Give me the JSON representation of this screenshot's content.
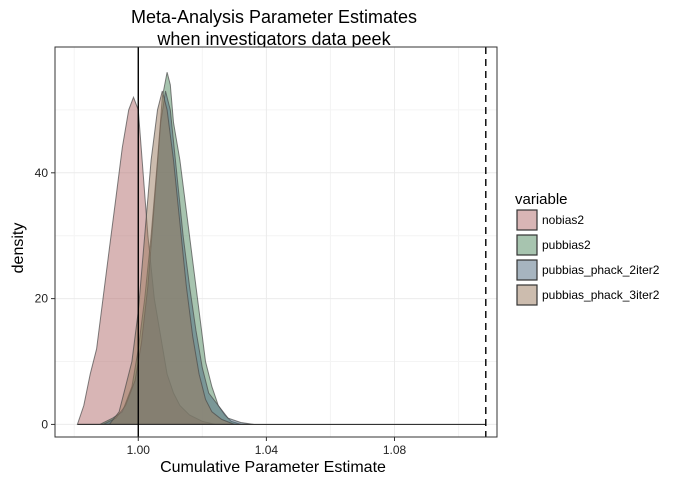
{
  "chart_data": {
    "type": "area",
    "title_line1": "Meta-Analysis Parameter Estimates",
    "title_line2": "when investigators data peek",
    "xlabel": "Cumulative Parameter Estimate",
    "ylabel": "density",
    "xlim": [
      0.974,
      1.112
    ],
    "ylim": [
      -2,
      60
    ],
    "x_ticks": [
      1.0,
      1.04,
      1.08
    ],
    "x_tick_labels": [
      "1.00",
      "1.04",
      "1.08"
    ],
    "y_ticks": [
      0,
      20,
      40
    ],
    "y_tick_labels": [
      "0",
      "20",
      "40"
    ],
    "grid": true,
    "vlines": [
      {
        "x": 1.0,
        "style": "solid"
      },
      {
        "x": 1.1085,
        "style": "dashed"
      }
    ],
    "legend_title": "variable",
    "legend_position": "right",
    "series": [
      {
        "name": "nobias2",
        "color": "#b26b6b",
        "points": [
          [
            0.981,
            0
          ],
          [
            0.982,
            1.5
          ],
          [
            0.983,
            3
          ],
          [
            0.985,
            8
          ],
          [
            0.987,
            12
          ],
          [
            0.989,
            20
          ],
          [
            0.991,
            28
          ],
          [
            0.993,
            36
          ],
          [
            0.995,
            44
          ],
          [
            0.997,
            50
          ],
          [
            0.9985,
            52
          ],
          [
            1.0,
            50
          ],
          [
            1.0015,
            40
          ],
          [
            1.003,
            30
          ],
          [
            1.005,
            20
          ],
          [
            1.007,
            14
          ],
          [
            1.009,
            8
          ],
          [
            1.011,
            5
          ],
          [
            1.013,
            3
          ],
          [
            1.016,
            1.5
          ],
          [
            1.02,
            0.5
          ],
          [
            1.024,
            0
          ]
        ]
      },
      {
        "name": "pubbias2",
        "color": "#4f8a60",
        "points": [
          [
            0.988,
            0
          ],
          [
            0.992,
            1
          ],
          [
            0.995,
            2
          ],
          [
            0.998,
            6
          ],
          [
            1.0,
            12
          ],
          [
            1.002,
            20
          ],
          [
            1.004,
            30
          ],
          [
            1.006,
            42
          ],
          [
            1.0075,
            52
          ],
          [
            1.009,
            56
          ],
          [
            1.01,
            54
          ],
          [
            1.011,
            48
          ],
          [
            1.013,
            42
          ],
          [
            1.015,
            34
          ],
          [
            1.017,
            26
          ],
          [
            1.019,
            18
          ],
          [
            1.021,
            10
          ],
          [
            1.023,
            6
          ],
          [
            1.025,
            3
          ],
          [
            1.027,
            1.5
          ],
          [
            1.029,
            0.5
          ],
          [
            1.032,
            0
          ]
        ]
      },
      {
        "name": "pubbias_phack_2iter2",
        "color": "#4d6a80",
        "points": [
          [
            0.989,
            0
          ],
          [
            0.993,
            1
          ],
          [
            0.996,
            3
          ],
          [
            0.999,
            7
          ],
          [
            1.001,
            13
          ],
          [
            1.003,
            22
          ],
          [
            1.005,
            35
          ],
          [
            1.007,
            48
          ],
          [
            1.0085,
            53
          ],
          [
            1.01,
            50
          ],
          [
            1.012,
            40
          ],
          [
            1.014,
            30
          ],
          [
            1.016,
            22
          ],
          [
            1.018,
            15
          ],
          [
            1.02,
            9
          ],
          [
            1.022,
            5
          ],
          [
            1.025,
            3
          ],
          [
            1.028,
            1
          ],
          [
            1.032,
            0.3
          ],
          [
            1.036,
            0
          ]
        ]
      },
      {
        "name": "pubbias_phack_3iter2",
        "color": "#9a7a5e",
        "points": [
          [
            0.991,
            0
          ],
          [
            0.994,
            2
          ],
          [
            0.996,
            6
          ],
          [
            0.998,
            10
          ],
          [
            1.0,
            18
          ],
          [
            1.002,
            30
          ],
          [
            1.004,
            42
          ],
          [
            1.006,
            50
          ],
          [
            1.0075,
            53
          ],
          [
            1.009,
            50
          ],
          [
            1.011,
            42
          ],
          [
            1.013,
            32
          ],
          [
            1.015,
            22
          ],
          [
            1.017,
            14
          ],
          [
            1.019,
            8
          ],
          [
            1.021,
            4
          ],
          [
            1.023,
            2
          ],
          [
            1.026,
            0.8
          ],
          [
            1.03,
            0
          ]
        ]
      }
    ]
  }
}
